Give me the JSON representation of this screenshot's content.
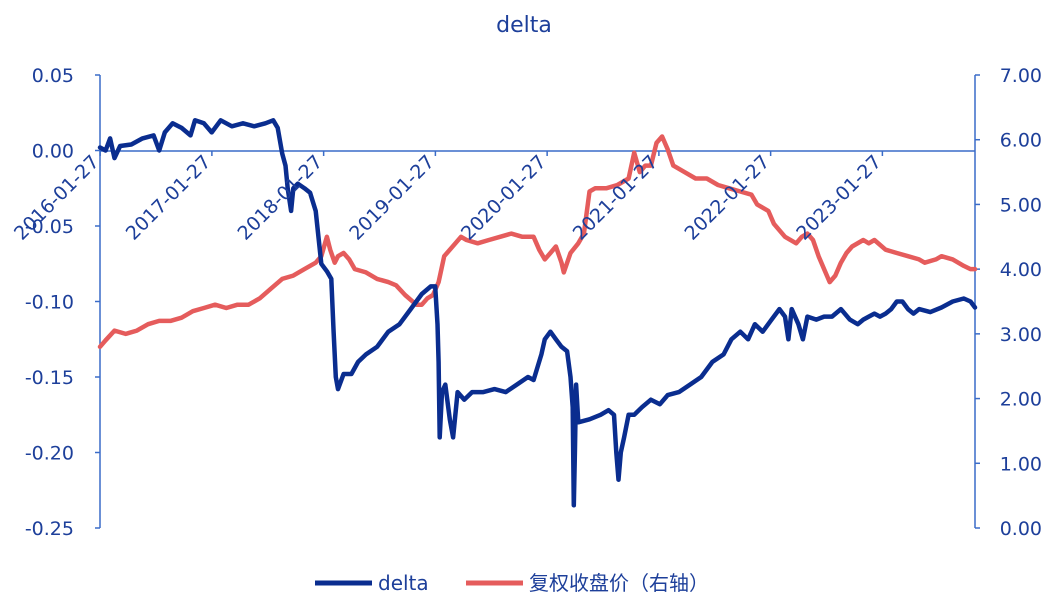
{
  "chart_data": {
    "type": "line",
    "title": "delta",
    "x_labels": [
      "2016-01-27",
      "2017-01-27",
      "2018-01-27",
      "2019-01-27",
      "2020-01-27",
      "2021-01-27",
      "2022-01-27",
      "2023-01-27"
    ],
    "y_left": {
      "ticks": [
        "0.05",
        "0.00",
        "-0.05",
        "-0.10",
        "-0.15",
        "-0.20",
        "-0.25"
      ],
      "range": [
        -0.25,
        0.05
      ]
    },
    "y_right": {
      "ticks": [
        "7.00",
        "6.00",
        "5.00",
        "4.00",
        "3.00",
        "2.00",
        "1.00",
        "0.00"
      ],
      "range": [
        0,
        7
      ]
    },
    "x_range": [
      2016.07,
      2023.9
    ],
    "series": [
      {
        "name": "delta",
        "axis": "left",
        "color": "#0a2d8f",
        "points": [
          [
            2016.07,
            0.002
          ],
          [
            2016.12,
            0.0
          ],
          [
            2016.16,
            0.008
          ],
          [
            2016.2,
            -0.005
          ],
          [
            2016.25,
            0.003
          ],
          [
            2016.35,
            0.004
          ],
          [
            2016.45,
            0.008
          ],
          [
            2016.55,
            0.01
          ],
          [
            2016.6,
            0.0
          ],
          [
            2016.65,
            0.012
          ],
          [
            2016.72,
            0.018
          ],
          [
            2016.8,
            0.015
          ],
          [
            2016.88,
            0.01
          ],
          [
            2016.92,
            0.02
          ],
          [
            2017.0,
            0.018
          ],
          [
            2017.07,
            0.012
          ],
          [
            2017.15,
            0.02
          ],
          [
            2017.25,
            0.016
          ],
          [
            2017.35,
            0.018
          ],
          [
            2017.45,
            0.016
          ],
          [
            2017.55,
            0.018
          ],
          [
            2017.62,
            0.02
          ],
          [
            2017.66,
            0.015
          ],
          [
            2017.7,
            -0.002
          ],
          [
            2017.73,
            -0.01
          ],
          [
            2017.75,
            -0.025
          ],
          [
            2017.78,
            -0.04
          ],
          [
            2017.8,
            -0.025
          ],
          [
            2017.84,
            -0.022
          ],
          [
            2017.9,
            -0.025
          ],
          [
            2017.95,
            -0.028
          ],
          [
            2018.0,
            -0.04
          ],
          [
            2018.05,
            -0.075
          ],
          [
            2018.1,
            -0.08
          ],
          [
            2018.14,
            -0.085
          ],
          [
            2018.16,
            -0.12
          ],
          [
            2018.18,
            -0.15
          ],
          [
            2018.2,
            -0.158
          ],
          [
            2018.25,
            -0.148
          ],
          [
            2018.32,
            -0.148
          ],
          [
            2018.38,
            -0.14
          ],
          [
            2018.45,
            -0.135
          ],
          [
            2018.55,
            -0.13
          ],
          [
            2018.65,
            -0.12
          ],
          [
            2018.75,
            -0.115
          ],
          [
            2018.85,
            -0.105
          ],
          [
            2018.95,
            -0.095
          ],
          [
            2019.03,
            -0.09
          ],
          [
            2019.07,
            -0.09
          ],
          [
            2019.09,
            -0.115
          ],
          [
            2019.1,
            -0.14
          ],
          [
            2019.11,
            -0.19
          ],
          [
            2019.13,
            -0.16
          ],
          [
            2019.16,
            -0.155
          ],
          [
            2019.2,
            -0.178
          ],
          [
            2019.23,
            -0.19
          ],
          [
            2019.27,
            -0.16
          ],
          [
            2019.33,
            -0.165
          ],
          [
            2019.4,
            -0.16
          ],
          [
            2019.5,
            -0.16
          ],
          [
            2019.6,
            -0.158
          ],
          [
            2019.7,
            -0.16
          ],
          [
            2019.8,
            -0.155
          ],
          [
            2019.9,
            -0.15
          ],
          [
            2019.95,
            -0.152
          ],
          [
            2020.02,
            -0.135
          ],
          [
            2020.05,
            -0.125
          ],
          [
            2020.1,
            -0.12
          ],
          [
            2020.15,
            -0.125
          ],
          [
            2020.2,
            -0.13
          ],
          [
            2020.25,
            -0.133
          ],
          [
            2020.28,
            -0.15
          ],
          [
            2020.3,
            -0.17
          ],
          [
            2020.31,
            -0.235
          ],
          [
            2020.32,
            -0.2
          ],
          [
            2020.33,
            -0.155
          ],
          [
            2020.35,
            -0.18
          ],
          [
            2020.45,
            -0.178
          ],
          [
            2020.55,
            -0.175
          ],
          [
            2020.62,
            -0.172
          ],
          [
            2020.67,
            -0.175
          ],
          [
            2020.69,
            -0.2
          ],
          [
            2020.71,
            -0.218
          ],
          [
            2020.73,
            -0.2
          ],
          [
            2020.76,
            -0.19
          ],
          [
            2020.8,
            -0.175
          ],
          [
            2020.85,
            -0.175
          ],
          [
            2020.92,
            -0.17
          ],
          [
            2021.0,
            -0.165
          ],
          [
            2021.08,
            -0.168
          ],
          [
            2021.15,
            -0.162
          ],
          [
            2021.25,
            -0.16
          ],
          [
            2021.35,
            -0.155
          ],
          [
            2021.45,
            -0.15
          ],
          [
            2021.55,
            -0.14
          ],
          [
            2021.65,
            -0.135
          ],
          [
            2021.72,
            -0.125
          ],
          [
            2021.8,
            -0.12
          ],
          [
            2021.87,
            -0.125
          ],
          [
            2021.93,
            -0.115
          ],
          [
            2022.0,
            -0.12
          ],
          [
            2022.08,
            -0.112
          ],
          [
            2022.15,
            -0.105
          ],
          [
            2022.2,
            -0.11
          ],
          [
            2022.23,
            -0.125
          ],
          [
            2022.26,
            -0.105
          ],
          [
            2022.32,
            -0.115
          ],
          [
            2022.36,
            -0.125
          ],
          [
            2022.4,
            -0.11
          ],
          [
            2022.48,
            -0.112
          ],
          [
            2022.55,
            -0.11
          ],
          [
            2022.62,
            -0.11
          ],
          [
            2022.7,
            -0.105
          ],
          [
            2022.78,
            -0.112
          ],
          [
            2022.85,
            -0.115
          ],
          [
            2022.9,
            -0.112
          ],
          [
            2022.95,
            -0.11
          ],
          [
            2023.0,
            -0.108
          ],
          [
            2023.05,
            -0.11
          ],
          [
            2023.1,
            -0.108
          ],
          [
            2023.15,
            -0.105
          ],
          [
            2023.2,
            -0.1
          ],
          [
            2023.25,
            -0.1
          ],
          [
            2023.3,
            -0.105
          ],
          [
            2023.35,
            -0.108
          ],
          [
            2023.4,
            -0.105
          ],
          [
            2023.5,
            -0.107
          ],
          [
            2023.6,
            -0.104
          ],
          [
            2023.7,
            -0.1
          ],
          [
            2023.8,
            -0.098
          ],
          [
            2023.86,
            -0.1
          ],
          [
            2023.9,
            -0.104
          ]
        ]
      },
      {
        "name": "复权收盘价（右轴）",
        "axis": "right",
        "color": "#e55c5c",
        "points": [
          [
            2016.07,
            2.8
          ],
          [
            2016.12,
            2.9
          ],
          [
            2016.2,
            3.05
          ],
          [
            2016.3,
            3.0
          ],
          [
            2016.4,
            3.05
          ],
          [
            2016.5,
            3.15
          ],
          [
            2016.6,
            3.2
          ],
          [
            2016.7,
            3.2
          ],
          [
            2016.8,
            3.25
          ],
          [
            2016.9,
            3.35
          ],
          [
            2017.0,
            3.4
          ],
          [
            2017.1,
            3.45
          ],
          [
            2017.2,
            3.4
          ],
          [
            2017.3,
            3.45
          ],
          [
            2017.4,
            3.45
          ],
          [
            2017.5,
            3.55
          ],
          [
            2017.6,
            3.7
          ],
          [
            2017.7,
            3.85
          ],
          [
            2017.8,
            3.9
          ],
          [
            2017.9,
            4.0
          ],
          [
            2018.0,
            4.1
          ],
          [
            2018.05,
            4.2
          ],
          [
            2018.1,
            4.5
          ],
          [
            2018.13,
            4.3
          ],
          [
            2018.17,
            4.1
          ],
          [
            2018.2,
            4.2
          ],
          [
            2018.25,
            4.25
          ],
          [
            2018.3,
            4.15
          ],
          [
            2018.35,
            4.0
          ],
          [
            2018.45,
            3.95
          ],
          [
            2018.55,
            3.85
          ],
          [
            2018.65,
            3.8
          ],
          [
            2018.72,
            3.75
          ],
          [
            2018.8,
            3.6
          ],
          [
            2018.9,
            3.45
          ],
          [
            2018.95,
            3.45
          ],
          [
            2019.0,
            3.55
          ],
          [
            2019.05,
            3.6
          ],
          [
            2019.1,
            3.8
          ],
          [
            2019.15,
            4.2
          ],
          [
            2019.25,
            4.4
          ],
          [
            2019.3,
            4.5
          ],
          [
            2019.35,
            4.45
          ],
          [
            2019.45,
            4.4
          ],
          [
            2019.55,
            4.45
          ],
          [
            2019.65,
            4.5
          ],
          [
            2019.75,
            4.55
          ],
          [
            2019.85,
            4.5
          ],
          [
            2019.95,
            4.5
          ],
          [
            2020.0,
            4.3
          ],
          [
            2020.05,
            4.15
          ],
          [
            2020.1,
            4.25
          ],
          [
            2020.15,
            4.35
          ],
          [
            2020.2,
            4.1
          ],
          [
            2020.22,
            3.95
          ],
          [
            2020.28,
            4.25
          ],
          [
            2020.35,
            4.4
          ],
          [
            2020.4,
            4.55
          ],
          [
            2020.45,
            5.2
          ],
          [
            2020.5,
            5.25
          ],
          [
            2020.6,
            5.25
          ],
          [
            2020.7,
            5.3
          ],
          [
            2020.8,
            5.4
          ],
          [
            2020.85,
            5.8
          ],
          [
            2020.9,
            5.5
          ],
          [
            2020.95,
            5.6
          ],
          [
            2021.0,
            5.6
          ],
          [
            2021.05,
            5.95
          ],
          [
            2021.1,
            6.05
          ],
          [
            2021.15,
            5.85
          ],
          [
            2021.2,
            5.6
          ],
          [
            2021.3,
            5.5
          ],
          [
            2021.4,
            5.4
          ],
          [
            2021.5,
            5.4
          ],
          [
            2021.6,
            5.3
          ],
          [
            2021.7,
            5.25
          ],
          [
            2021.8,
            5.2
          ],
          [
            2021.9,
            5.15
          ],
          [
            2021.95,
            5.0
          ],
          [
            2022.0,
            4.95
          ],
          [
            2022.05,
            4.9
          ],
          [
            2022.1,
            4.7
          ],
          [
            2022.2,
            4.5
          ],
          [
            2022.3,
            4.4
          ],
          [
            2022.35,
            4.5
          ],
          [
            2022.4,
            4.55
          ],
          [
            2022.45,
            4.45
          ],
          [
            2022.5,
            4.2
          ],
          [
            2022.55,
            4.0
          ],
          [
            2022.6,
            3.8
          ],
          [
            2022.65,
            3.9
          ],
          [
            2022.7,
            4.1
          ],
          [
            2022.75,
            4.25
          ],
          [
            2022.8,
            4.35
          ],
          [
            2022.9,
            4.45
          ],
          [
            2022.95,
            4.4
          ],
          [
            2023.0,
            4.45
          ],
          [
            2023.1,
            4.3
          ],
          [
            2023.2,
            4.25
          ],
          [
            2023.3,
            4.2
          ],
          [
            2023.4,
            4.15
          ],
          [
            2023.45,
            4.1
          ],
          [
            2023.55,
            4.15
          ],
          [
            2023.6,
            4.2
          ],
          [
            2023.7,
            4.15
          ],
          [
            2023.8,
            4.05
          ],
          [
            2023.86,
            4.0
          ],
          [
            2023.9,
            4.0
          ]
        ]
      }
    ]
  }
}
